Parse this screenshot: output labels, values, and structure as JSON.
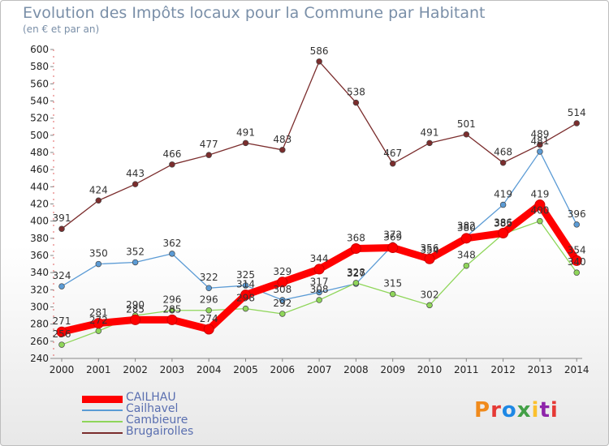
{
  "header": {
    "title": "Evolution des Impôts locaux pour la Commune par Habitant",
    "subtitle": "(en € et par an)"
  },
  "logo": {
    "text": "Proxiti",
    "colors": [
      "#f08a1c",
      "#e53935",
      "#1e88e5",
      "#43a047",
      "#fbc02d",
      "#8e24aa",
      "#e53935"
    ]
  },
  "chart_data": {
    "type": "line",
    "x": [
      "2000",
      "2001",
      "2002",
      "2003",
      "2004",
      "2005",
      "2006",
      "2007",
      "2008",
      "2009",
      "2010",
      "2011",
      "2012",
      "2013",
      "2014"
    ],
    "ylim": [
      240,
      600
    ],
    "yticks": [
      240,
      260,
      280,
      300,
      320,
      340,
      360,
      380,
      400,
      420,
      440,
      460,
      480,
      500,
      520,
      540,
      560,
      580,
      600
    ],
    "grid": false,
    "legend_position": "bottom-left",
    "series": [
      {
        "name": "CAILHAU",
        "color": "#ff0000",
        "values": [
          271,
          281,
          285,
          285,
          274,
          314,
          329,
          344,
          368,
          369,
          356,
          380,
          386,
          419,
          354
        ],
        "labels": [
          "271",
          "281",
          "285",
          "285",
          "274",
          "314",
          "329",
          "344",
          "368",
          "369",
          "356",
          "380",
          "386",
          "419",
          "354"
        ]
      },
      {
        "name": "Cailhavel",
        "color": "#5b9bd5",
        "values": [
          324,
          350,
          352,
          362,
          322,
          325,
          308,
          317,
          327,
          372,
          354,
          382,
          419,
          481,
          396
        ],
        "labels": [
          "324",
          "350",
          "352",
          "362",
          "322",
          "325",
          "308",
          "317",
          "327",
          "372",
          "354",
          "382",
          "419",
          "481",
          "396"
        ]
      },
      {
        "name": "Cambieure",
        "color": "#8fd65a",
        "values": [
          256,
          272,
          290,
          296,
          296,
          298,
          292,
          308,
          328,
          315,
          302,
          348,
          385,
          400,
          340
        ],
        "labels": [
          "256",
          "272",
          "290",
          "296",
          "296",
          "298",
          "292",
          "308",
          "328",
          "315",
          "302",
          "348",
          "385",
          "400",
          "340"
        ]
      },
      {
        "name": "Brugairolles",
        "color": "#7b2d2d",
        "values": [
          391,
          424,
          443,
          466,
          477,
          491,
          483,
          586,
          538,
          467,
          491,
          501,
          468,
          489,
          514
        ],
        "labels": [
          "391",
          "424",
          "443",
          "466",
          "477",
          "491",
          "483",
          "586",
          "538",
          "467",
          "491",
          "501",
          "468",
          "489",
          "514"
        ]
      }
    ]
  }
}
